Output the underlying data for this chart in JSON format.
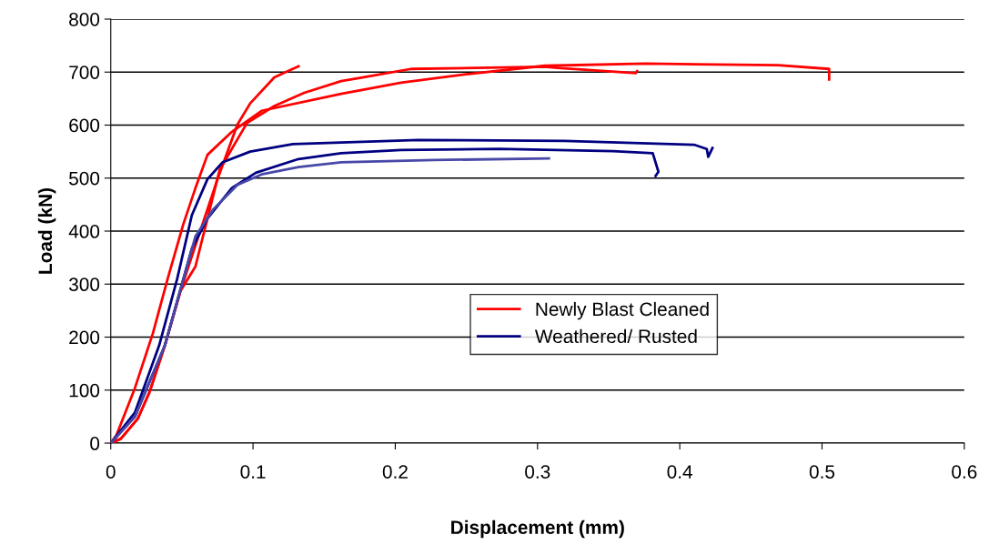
{
  "chart_data": {
    "type": "line",
    "xlabel": "Displacement (mm)",
    "ylabel": "Load (kN)",
    "xlim": [
      0,
      0.6
    ],
    "ylim": [
      0,
      800
    ],
    "xticks": [
      0,
      0.1,
      0.2,
      0.3,
      0.4,
      0.5,
      0.6
    ],
    "yticks": [
      0,
      100,
      200,
      300,
      400,
      500,
      600,
      700,
      800
    ],
    "grid": "y",
    "legend": "center",
    "marker": "none",
    "line_style": "solid",
    "series": [
      {
        "name": "Newly Blast Cleaned",
        "color": "#ff0000",
        "x": [
          0,
          0.004,
          0.017,
          0.0296,
          0.04,
          0.051,
          0.0595,
          0.068,
          0.085,
          0.106,
          0.162,
          0.204,
          0.25,
          0.305,
          0.376,
          0.469,
          0.505,
          0.505
        ],
        "values": [
          0,
          15,
          104,
          207,
          310,
          413,
          481,
          544,
          587,
          627,
          659,
          680,
          696,
          712,
          716,
          713,
          706,
          686
        ]
      },
      {
        "color": "#ff0000",
        "x": [
          0,
          0.007,
          0.019,
          0.0275,
          0.038,
          0.049,
          0.0595,
          0.0744,
          0.089,
          0.098,
          0.115,
          0.132
        ],
        "values": [
          0,
          8,
          46,
          98,
          184,
          287,
          373,
          493,
          601,
          641,
          690,
          711
        ]
      },
      {
        "color": "#ff0000",
        "x": [
          0,
          0.007,
          0.019,
          0.0275,
          0.038,
          0.049,
          0.0595,
          0.0766,
          0.0958,
          0.115,
          0.136,
          0.162,
          0.177,
          0.211,
          0.305,
          0.314,
          0.369,
          0.37
        ],
        "values": [
          0,
          8,
          46,
          98,
          184,
          287,
          333,
          516,
          604,
          636,
          661,
          683,
          690,
          706,
          710,
          708,
          698,
          702
        ]
      },
      {
        "name": "Weathered/ Rusted",
        "color": "#000080",
        "x": [
          0,
          0.017,
          0.034,
          0.0467,
          0.057,
          0.068,
          0.0787,
          0.098,
          0.128,
          0.162,
          0.216,
          0.319,
          0.41,
          0.419,
          0.42,
          0.423
        ],
        "values": [
          0,
          58,
          184,
          310,
          430,
          498,
          530,
          550,
          564,
          567,
          572,
          570,
          563,
          555,
          540,
          557
        ]
      },
      {
        "color": "#000080",
        "x": [
          0,
          0.017,
          0.038,
          0.057,
          0.068,
          0.085,
          0.102,
          0.132,
          0.162,
          0.204,
          0.273,
          0.353,
          0.381,
          0.385,
          0.383
        ],
        "values": [
          0,
          50,
          184,
          367,
          424,
          481,
          510,
          536,
          547,
          553,
          555,
          551,
          547,
          512,
          504
        ]
      },
      {
        "color": "#4848a8",
        "x": [
          0,
          0.017,
          0.038,
          0.0595,
          0.072,
          0.089,
          0.106,
          0.132,
          0.162,
          0.227,
          0.308
        ],
        "values": [
          0,
          50,
          184,
          390,
          441,
          487,
          507,
          521,
          530,
          534,
          537
        ]
      }
    ]
  }
}
